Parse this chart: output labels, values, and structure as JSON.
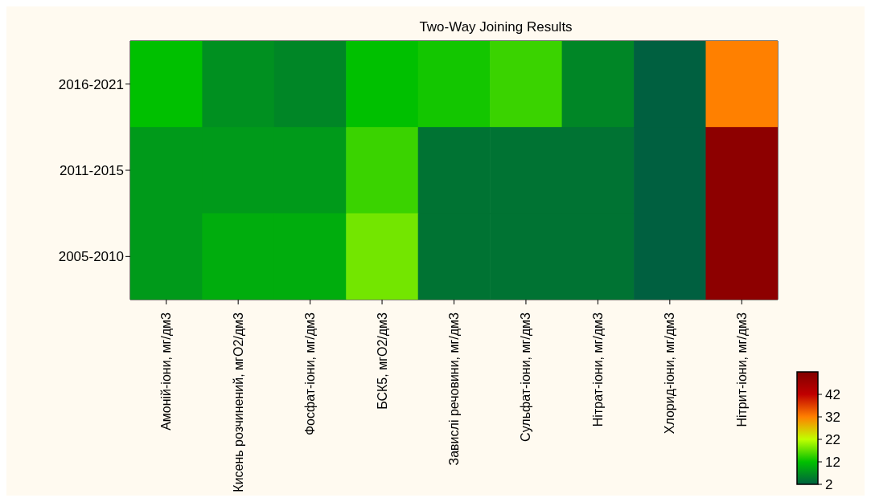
{
  "chart_data": {
    "type": "heatmap",
    "title": "Two-Way Joining Results",
    "categories": [
      "Амоній-іони, мг/дм3",
      "Кисень розчинений, мгО2/дм3",
      "Фосфат-іони, мг/дм3",
      "БСК5, мгО2/дм3",
      "Завислі речовини, мг/дм3",
      "Сульфат-іони, мг/дм3",
      "Нітрат-іони, мг/дм3",
      "Хлорид-іони, мг/дм3",
      "Нітрит-іони, мг/дм3"
    ],
    "y_categories": [
      "2016-2021",
      "2011-2015",
      "2005-2010"
    ],
    "cells": [
      [
        12,
        7,
        6,
        12,
        13,
        15,
        6,
        2,
        32
      ],
      [
        8,
        8,
        8,
        15,
        4,
        4,
        4,
        2,
        50
      ],
      [
        8,
        10,
        10,
        18,
        4,
        4,
        4,
        2,
        50
      ]
    ],
    "clim": [
      2,
      52
    ],
    "cticks": [
      2,
      12,
      22,
      32,
      42
    ]
  }
}
